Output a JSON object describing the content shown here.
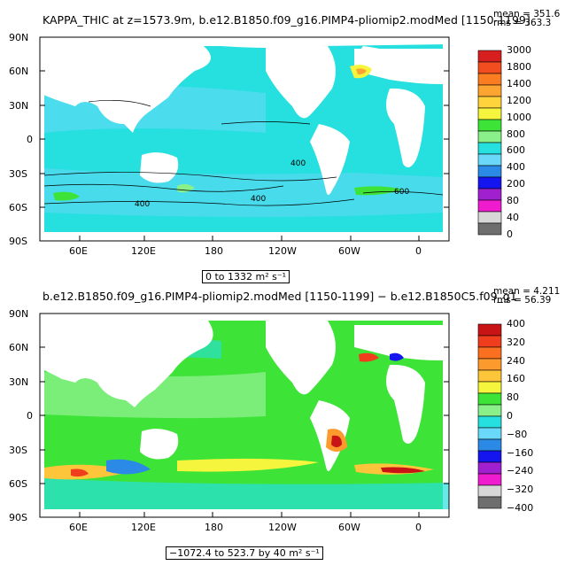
{
  "panel1": {
    "title": "KAPPA_THIC at z=1573.9m, b.e12.B1850.f09_g16.PIMP4-pliomip2.modMed [1150-1199]",
    "mean": "mean = 351.6",
    "rms": "rms = 363.3",
    "range": "0 to 1332 m² s⁻¹",
    "lat_labels": [
      "90N",
      "60N",
      "30N",
      "0",
      "30S",
      "60S",
      "90S"
    ],
    "lon_labels": [
      "60E",
      "120E",
      "180",
      "120W",
      "60W",
      "0"
    ],
    "contour_labels": [
      "400",
      "400",
      "400",
      "600"
    ],
    "colorbar": {
      "labels": [
        "3000",
        "1800",
        "1400",
        "1200",
        "1000",
        "800",
        "600",
        "400",
        "200",
        "80",
        "40",
        "0"
      ],
      "colors": [
        "#d81f1f",
        "#f24d1f",
        "#fb7d21",
        "#fda431",
        "#fed33c",
        "#f5f53d",
        "#3ee337",
        "#8af08a",
        "#26dfdf",
        "#6ad8f8",
        "#2a8ae6",
        "#1515ef",
        "#a020cf",
        "#ee1bcf",
        "#d7d7d7",
        "#6e6e6e"
      ]
    }
  },
  "panel2": {
    "title": "b.e12.B1850.f09_g16.PIMP4-pliomip2.modMed [1150-1199] − b.e12.B1850C5.f09_g1",
    "mean": "mean = 4.211",
    "rms": "rms = 56.39",
    "range": "−1072.4 to 523.7 by 40 m² s⁻¹",
    "lat_labels": [
      "90N",
      "60N",
      "30N",
      "0",
      "30S",
      "60S",
      "90S"
    ],
    "lon_labels": [
      "60E",
      "120E",
      "180",
      "120W",
      "60W",
      "0"
    ],
    "colorbar": {
      "labels": [
        "400",
        "320",
        "240",
        "160",
        "80",
        "0",
        "−80",
        "−160",
        "−240",
        "−320",
        "−400"
      ],
      "colors": [
        "#c81414",
        "#ef3d1e",
        "#fb7020",
        "#fd9a2e",
        "#fdc63a",
        "#f5f53d",
        "#3ee337",
        "#8af08a",
        "#26dfdf",
        "#6ad8f8",
        "#2a8ae6",
        "#1515ef",
        "#a020cf",
        "#ee1bcf",
        "#d7d7d7",
        "#6e6e6e"
      ]
    }
  }
}
